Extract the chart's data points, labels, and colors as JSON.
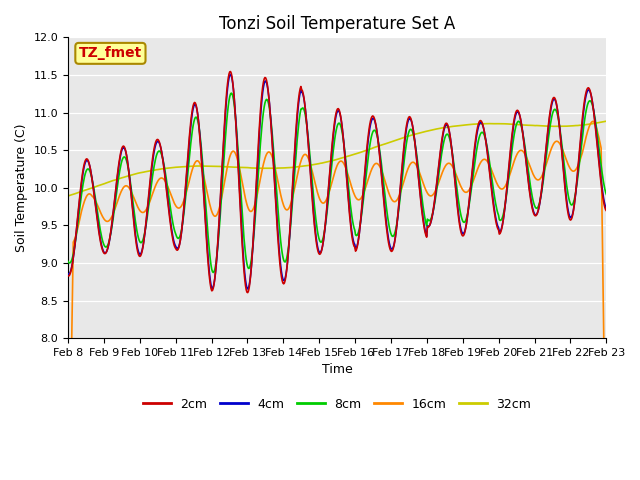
{
  "title": "Tonzi Soil Temperature Set A",
  "xlabel": "Time",
  "ylabel": "Soil Temperature (C)",
  "ylim": [
    8.0,
    12.0
  ],
  "yticks": [
    8.0,
    8.5,
    9.0,
    9.5,
    10.0,
    10.5,
    11.0,
    11.5,
    12.0
  ],
  "date_labels": [
    "Feb 8",
    "Feb 9",
    "Feb 10",
    "Feb 11",
    "Feb 12",
    "Feb 13",
    "Feb 14",
    "Feb 15",
    "Feb 16",
    "Feb 17",
    "Feb 18",
    "Feb 19",
    "Feb 20",
    "Feb 21",
    "Feb 22",
    "Feb 23"
  ],
  "series_labels": [
    "2cm",
    "4cm",
    "8cm",
    "16cm",
    "32cm"
  ],
  "series_colors": [
    "#cc0000",
    "#0000cc",
    "#00cc00",
    "#ff8800",
    "#cccc00"
  ],
  "annotation_text": "TZ_fmet",
  "annotation_color": "#cc0000",
  "annotation_bg": "#ffff99",
  "annotation_border": "#aa8800",
  "plot_bg": "#e8e8e8",
  "fig_bg": "#ffffff",
  "title_fontsize": 12,
  "label_fontsize": 9,
  "tick_fontsize": 8,
  "legend_fontsize": 9
}
